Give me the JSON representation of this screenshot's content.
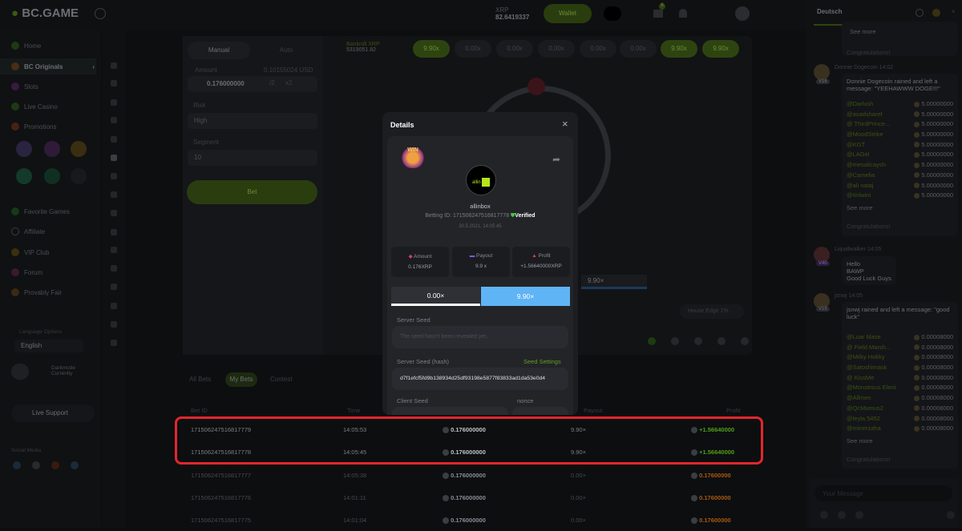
{
  "header": {
    "brand": "BC.GAME",
    "currency": "XRP",
    "balance": "82.6419337",
    "wallet": "Wallet",
    "notif_count": "6",
    "language": "Deutsch"
  },
  "sidebar": {
    "items": [
      {
        "label": "Home"
      },
      {
        "label": "BC Originals"
      },
      {
        "label": "Slots"
      },
      {
        "label": "Live Casino"
      },
      {
        "label": "Promotions"
      },
      {
        "label": "Favorite Games"
      },
      {
        "label": "Affiliate"
      },
      {
        "label": "VIP Club"
      },
      {
        "label": "Forum"
      },
      {
        "label": "Provably Fair"
      }
    ],
    "language_label": "Language Options",
    "language": "English",
    "darkmode": "Darkmode",
    "darkmode_sub": "Currently",
    "live_support": "Live Support",
    "social": "Social Media"
  },
  "game": {
    "tab_manual": "Manual",
    "tab_auto": "Auto",
    "amount_label": "Amount",
    "amount_usd": "0.10155024 USD",
    "amount": "0.176000000",
    "half": "/2",
    "double": "x2",
    "risk_label": "Risk",
    "risk": "High",
    "segment_label": "Segment",
    "segment": "10",
    "bet": "Bet",
    "bankroll_label": "Bankroll",
    "bankroll_cur": "XRP",
    "bankroll": "5319051.82",
    "history": [
      "9.90x",
      "0.00x",
      "0.00x",
      "0.00x",
      "0.00x",
      "0.00x",
      "9.90x",
      "9.90x"
    ],
    "result": "9.90×",
    "house_edge": "House Edge 1%"
  },
  "bets": {
    "tabs": [
      "All Bets",
      "My Bets",
      "Contest"
    ],
    "headers": {
      "id": "Bet ID",
      "time": "Time",
      "payout": "Payout",
      "profit": "Profit"
    },
    "rows": [
      {
        "id": "171506247516817779",
        "time": "14:05:53",
        "amount": "0.176000000",
        "payout": "9.90×",
        "profit": "+1.56640000"
      },
      {
        "id": "171506247516817778",
        "time": "14:05:45",
        "amount": "0.176000000",
        "payout": "9.90×",
        "profit": "+1.56640000"
      },
      {
        "id": "171506247516817777",
        "time": "14:05:38",
        "amount": "0.176000000",
        "payout": "0.00×",
        "profit": "0.17600000"
      },
      {
        "id": "171506247516817776",
        "time": "14:01:11",
        "amount": "0.176000000",
        "payout": "0.00×",
        "profit": "0.17600000"
      },
      {
        "id": "171506247516817775",
        "time": "14:01:04",
        "amount": "0.176000000",
        "payout": "0.00×",
        "profit": "0.17600000"
      }
    ]
  },
  "modal": {
    "title": "Details",
    "badge": "WIN",
    "avatar_text": "allin",
    "username": "allinbox",
    "betting_id": "Betting ID: 171506247516817778",
    "verified": "Verified",
    "datetime": "30.5.2021, 14:05:45",
    "amount_label": "Amount",
    "amount": "0.176XRP",
    "payout_label": "Payout",
    "payout": "9.9 x",
    "profit_label": "Profit",
    "profit": "+1.56640000XRP",
    "bar_left": "0.00×",
    "bar_right": "9.90×",
    "server_seed_label": "Server Seed",
    "server_seed": "The seed hasn't been revealed yet.",
    "hash_label": "Server Seed (hash)",
    "seed_settings": "Seed Settings",
    "hash": "d7f1efcf5fd9b138934d25df93198e5877f83833ad1da53e0d4",
    "client_seed_label": "Client Seed",
    "nonce_label": "nonce"
  },
  "chat": {
    "see_more": "See more",
    "congrats": "Congratulations!",
    "m1": {
      "user": "Donnie Dogecoin",
      "time": "14:02",
      "vip": "V16",
      "text": "Donnie Dogecoin rained and left a message: \"YEEHAWWW DOGE!!!\"",
      "users": [
        "@Darlush",
        "@asadsharef",
        "@ ThirdPrince...",
        "@MoodStrike",
        "@KGT",
        "@LAGel",
        "@mesalicaysh",
        "@Camelia",
        "@ali nataj",
        "@tinlwini"
      ],
      "amount": "5.00000000"
    },
    "m2": {
      "user": "Liquidwalker",
      "time": "14:05",
      "vip": "V40",
      "lines": [
        "Hello",
        "BAWP",
        "Good Luck Guys"
      ]
    },
    "m3": {
      "user": "jsnwj",
      "time": "14:05",
      "vip": "V15",
      "text": "jsnwj rained and left a message: \"good luck\"",
      "users": [
        "@Luar blase",
        "@ Field Marsh...",
        "@Milky Hokky",
        "@Satoshimask",
        "@ KissMe",
        "@Monstrous Eleni",
        "@Allmen",
        "@QcMumus2",
        "@leyla 5452",
        "@minerzaha"
      ],
      "amount": "0.00008000"
    },
    "placeholder": "Your Message"
  },
  "colors": {
    "accent": "#6ab619",
    "highlight": "#e2262d",
    "win_bar": "#5fb4f5"
  }
}
